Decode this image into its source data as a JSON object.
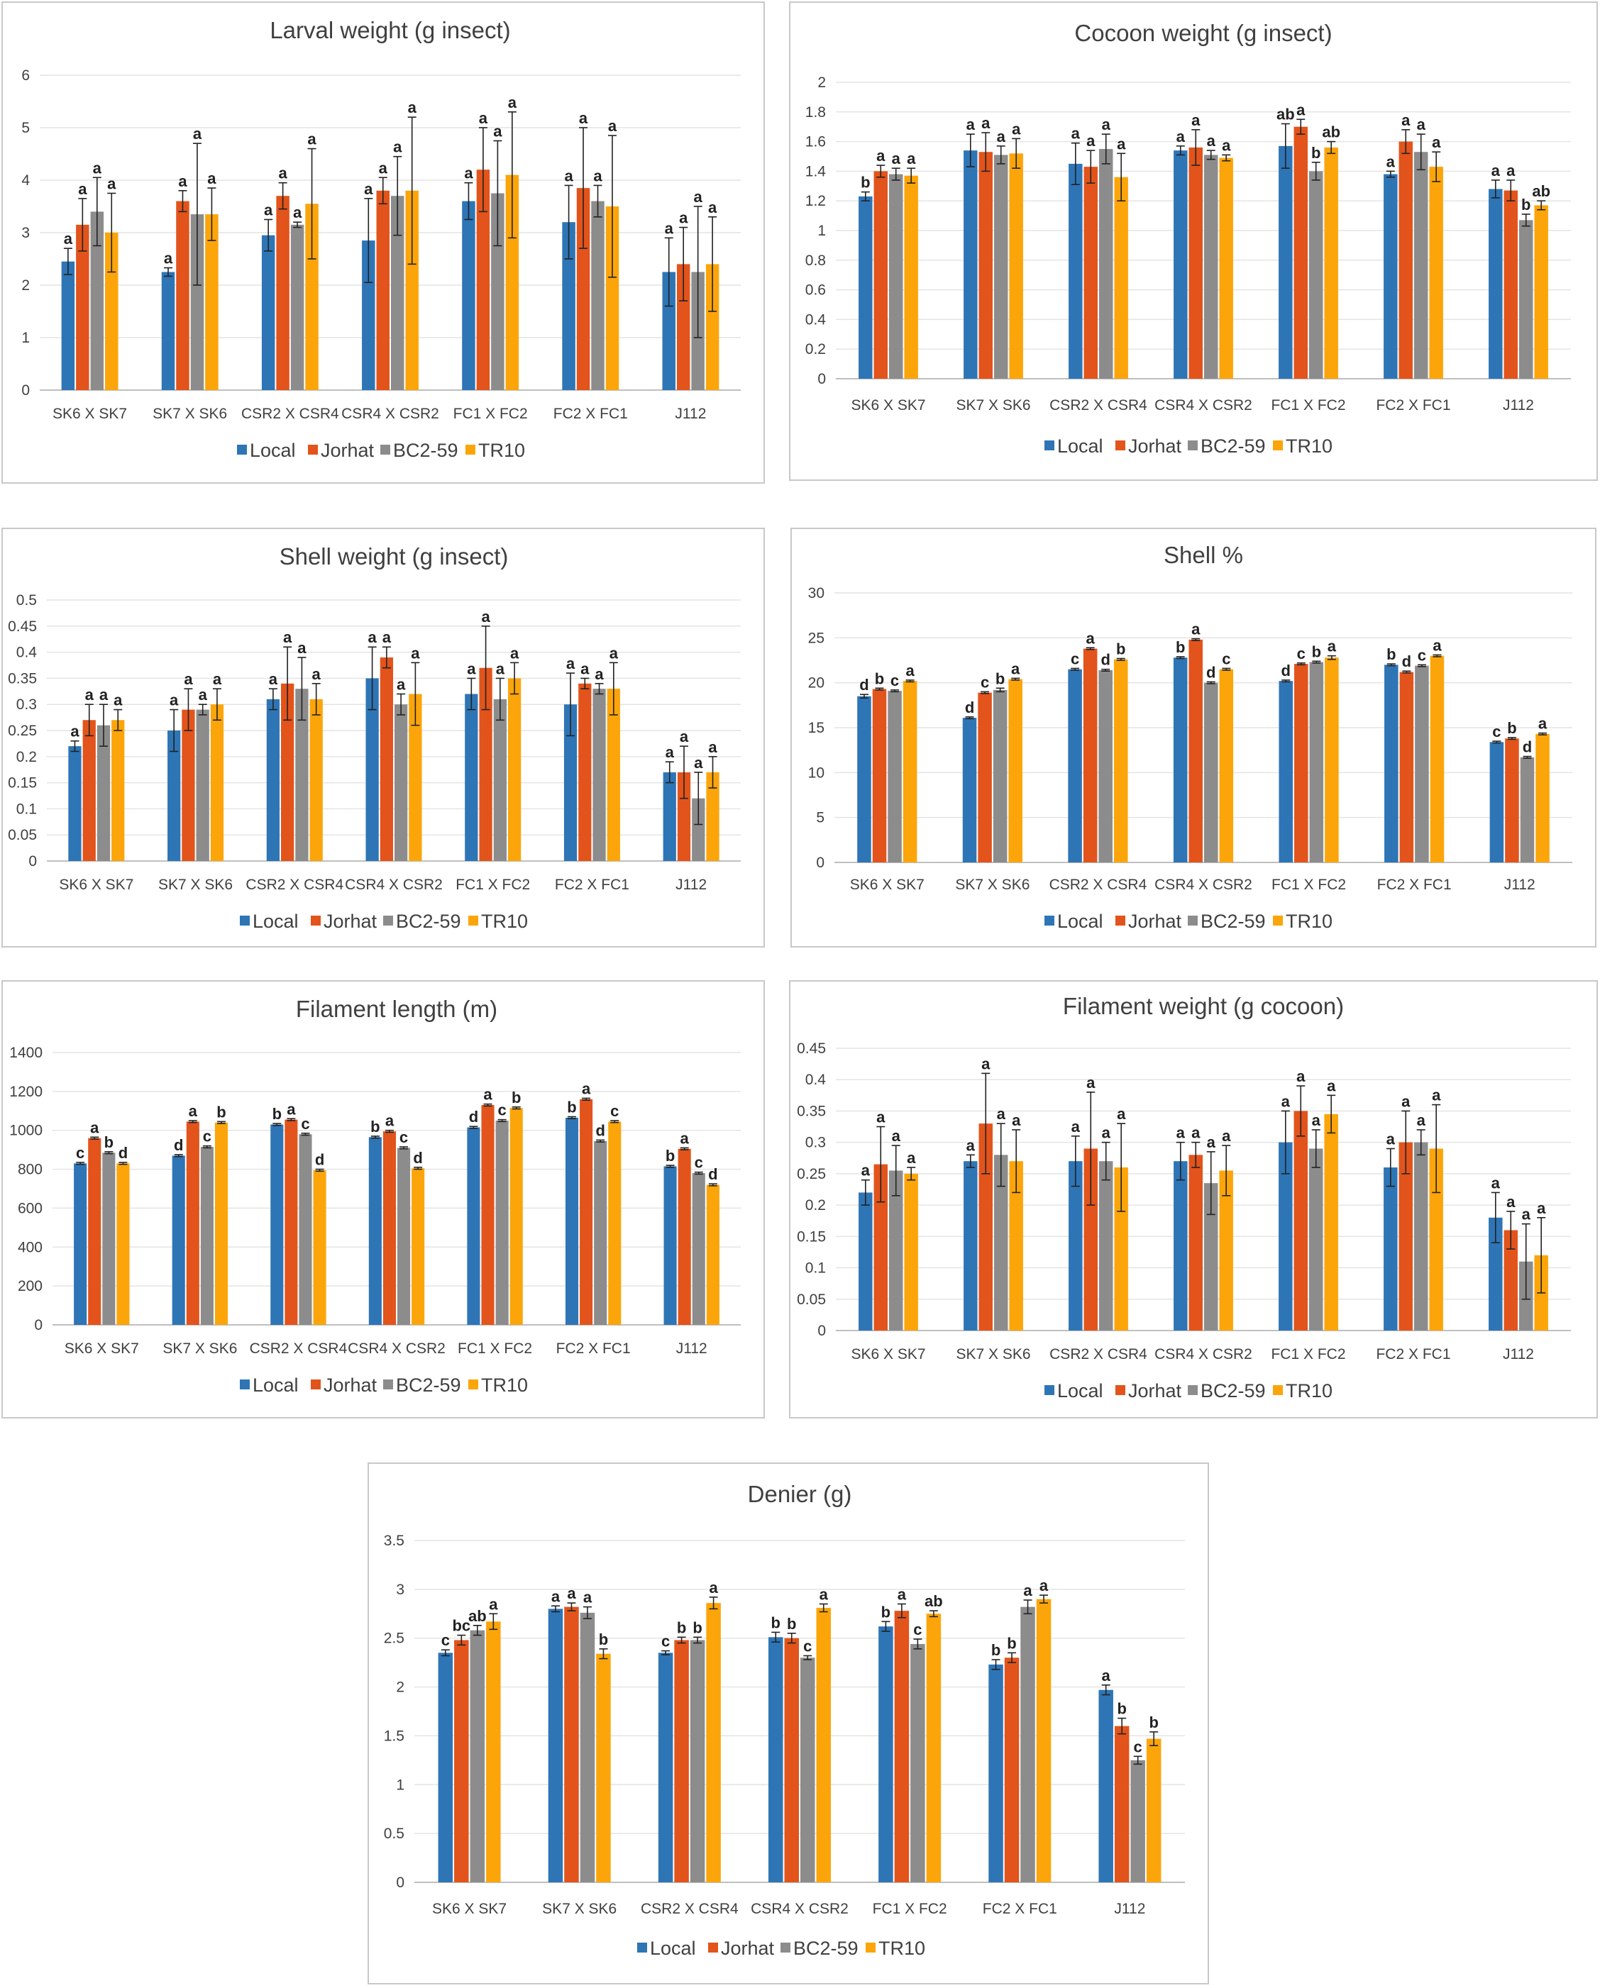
{
  "series_colors": {
    "Local": "#2e75b6",
    "Jorhat": "#e2541b",
    "BC2-59": "#8c8c8c",
    "TR10": "#fca50a"
  },
  "chart_data": [
    {
      "type": "bar",
      "title": "Larval weight (g insect)",
      "categories": [
        "SK6 X SK7",
        "SK7 X SK6",
        "CSR2 X CSR4",
        "CSR4 X CSR2",
        "FC1 X FC2",
        "FC2 X FC1",
        "J112"
      ],
      "ylim": [
        0,
        6
      ],
      "yticks": [
        "0",
        "1",
        "2",
        "3",
        "4",
        "5",
        "6"
      ],
      "ytick_values": [
        0,
        1,
        2,
        3,
        4,
        5,
        6
      ],
      "series": [
        {
          "name": "Local",
          "values": [
            2.45,
            2.25,
            2.95,
            2.85,
            3.6,
            3.2,
            2.25
          ],
          "errors": [
            0.25,
            0.08,
            0.3,
            0.8,
            0.35,
            0.7,
            0.65
          ],
          "labels": [
            "a",
            "a",
            "a",
            "a",
            "a",
            "a",
            "a"
          ]
        },
        {
          "name": "Jorhat",
          "values": [
            3.15,
            3.6,
            3.7,
            3.8,
            4.2,
            3.85,
            2.4
          ],
          "errors": [
            0.5,
            0.2,
            0.25,
            0.25,
            0.8,
            1.15,
            0.7
          ],
          "labels": [
            "a",
            "a",
            "a",
            "a",
            "a",
            "a",
            "a"
          ]
        },
        {
          "name": "BC2-59",
          "values": [
            3.4,
            3.35,
            3.15,
            3.7,
            3.75,
            3.6,
            2.25
          ],
          "errors": [
            0.65,
            1.35,
            0.05,
            0.75,
            1.0,
            0.3,
            1.25
          ],
          "labels": [
            "a",
            "a",
            "a",
            "a",
            "a",
            "a",
            "a"
          ]
        },
        {
          "name": "TR10",
          "values": [
            3.0,
            3.35,
            3.55,
            3.8,
            4.1,
            3.5,
            2.4
          ],
          "errors": [
            0.75,
            0.5,
            1.05,
            1.4,
            1.2,
            1.35,
            0.9
          ],
          "labels": [
            "a",
            "a",
            "a",
            "a",
            "a",
            "a",
            "a"
          ]
        }
      ]
    },
    {
      "type": "bar",
      "title": "Cocoon weight (g insect)",
      "categories": [
        "SK6 X SK7",
        "SK7 X SK6",
        "CSR2 X CSR4",
        "CSR4 X CSR2",
        "FC1 X FC2",
        "FC2 X FC1",
        "J112"
      ],
      "ylim": [
        0,
        2
      ],
      "yticks": [
        "0",
        "0.2",
        "0.4",
        "0.6",
        "0.8",
        "1",
        "1.2",
        "1.4",
        "1.6",
        "1.8",
        "2"
      ],
      "ytick_values": [
        0,
        0.2,
        0.4,
        0.6,
        0.8,
        1,
        1.2,
        1.4,
        1.6,
        1.8,
        2
      ],
      "series": [
        {
          "name": "Local",
          "values": [
            1.23,
            1.54,
            1.45,
            1.54,
            1.57,
            1.38,
            1.28
          ],
          "errors": [
            0.03,
            0.11,
            0.14,
            0.03,
            0.15,
            0.02,
            0.06
          ],
          "labels": [
            "b",
            "a",
            "a",
            "a",
            "ab",
            "a",
            "a"
          ]
        },
        {
          "name": "Jorhat",
          "values": [
            1.4,
            1.53,
            1.43,
            1.56,
            1.7,
            1.6,
            1.27
          ],
          "errors": [
            0.04,
            0.13,
            0.11,
            0.12,
            0.05,
            0.08,
            0.07
          ],
          "labels": [
            "a",
            "a",
            "a",
            "a",
            "a",
            "a",
            "a"
          ]
        },
        {
          "name": "BC2-59",
          "values": [
            1.38,
            1.51,
            1.55,
            1.51,
            1.4,
            1.53,
            1.07
          ],
          "errors": [
            0.04,
            0.06,
            0.1,
            0.03,
            0.06,
            0.12,
            0.04
          ],
          "labels": [
            "a",
            "a",
            "a",
            "a",
            "b",
            "a",
            "b"
          ]
        },
        {
          "name": "TR10",
          "values": [
            1.37,
            1.52,
            1.36,
            1.49,
            1.56,
            1.43,
            1.17
          ],
          "errors": [
            0.05,
            0.1,
            0.16,
            0.02,
            0.04,
            0.1,
            0.03
          ],
          "labels": [
            "a",
            "a",
            "a",
            "a",
            "ab",
            "a",
            "ab"
          ]
        }
      ]
    },
    {
      "type": "bar",
      "title": "Shell weight (g insect)",
      "categories": [
        "SK6 X SK7",
        "SK7 X SK6",
        "CSR2 X CSR4",
        "CSR4 X CSR2",
        "FC1 X FC2",
        "FC2 X FC1",
        "J112"
      ],
      "ylim": [
        0,
        0.5
      ],
      "yticks": [
        "0",
        "0.05",
        "0.1",
        "0.15",
        "0.2",
        "0.25",
        "0.3",
        "0.35",
        "0.4",
        "0.45",
        "0.5"
      ],
      "ytick_values": [
        0,
        0.05,
        0.1,
        0.15,
        0.2,
        0.25,
        0.3,
        0.35,
        0.4,
        0.45,
        0.5
      ],
      "series": [
        {
          "name": "Local",
          "values": [
            0.22,
            0.25,
            0.31,
            0.35,
            0.32,
            0.3,
            0.17
          ],
          "errors": [
            0.01,
            0.04,
            0.02,
            0.06,
            0.03,
            0.06,
            0.02
          ],
          "labels": [
            "a",
            "a",
            "a",
            "a",
            "a",
            "a",
            "a"
          ]
        },
        {
          "name": "Jorhat",
          "values": [
            0.27,
            0.29,
            0.34,
            0.39,
            0.37,
            0.34,
            0.17
          ],
          "errors": [
            0.03,
            0.04,
            0.07,
            0.02,
            0.08,
            0.01,
            0.05
          ],
          "labels": [
            "a",
            "a",
            "a",
            "a",
            "a",
            "a",
            "a"
          ]
        },
        {
          "name": "BC2-59",
          "values": [
            0.26,
            0.29,
            0.33,
            0.3,
            0.31,
            0.33,
            0.12
          ],
          "errors": [
            0.04,
            0.01,
            0.06,
            0.02,
            0.04,
            0.01,
            0.05
          ],
          "labels": [
            "a",
            "a",
            "a",
            "a",
            "a",
            "a",
            "a"
          ]
        },
        {
          "name": "TR10",
          "values": [
            0.27,
            0.3,
            0.31,
            0.32,
            0.35,
            0.33,
            0.17
          ],
          "errors": [
            0.02,
            0.03,
            0.03,
            0.06,
            0.03,
            0.05,
            0.03
          ],
          "labels": [
            "a",
            "a",
            "a",
            "a",
            "a",
            "a",
            "a"
          ]
        }
      ]
    },
    {
      "type": "bar",
      "title": "Shell %",
      "categories": [
        "SK6 X SK7",
        "SK7 X SK6",
        "CSR2 X CSR4",
        "CSR4 X CSR2",
        "FC1 X FC2",
        "FC2 X FC1",
        "J112"
      ],
      "ylim": [
        0,
        30
      ],
      "yticks": [
        "0",
        "5",
        "10",
        "15",
        "20",
        "25",
        "30"
      ],
      "ytick_values": [
        0,
        5,
        10,
        15,
        20,
        25,
        30
      ],
      "series": [
        {
          "name": "Local",
          "values": [
            18.5,
            16.1,
            21.5,
            22.8,
            20.2,
            22.0,
            13.4
          ],
          "errors": [
            0.2,
            0.1,
            0.1,
            0.1,
            0.1,
            0.1,
            0.1
          ],
          "labels": [
            "d",
            "d",
            "c",
            "b",
            "d",
            "b",
            "c"
          ]
        },
        {
          "name": "Jorhat",
          "values": [
            19.3,
            18.9,
            23.8,
            24.8,
            22.1,
            21.2,
            13.8
          ],
          "errors": [
            0.1,
            0.1,
            0.1,
            0.1,
            0.1,
            0.1,
            0.1
          ],
          "labels": [
            "b",
            "c",
            "a",
            "a",
            "c",
            "d",
            "b"
          ]
        },
        {
          "name": "BC2-59",
          "values": [
            19.1,
            19.2,
            21.4,
            20.0,
            22.3,
            21.9,
            11.7
          ],
          "errors": [
            0.1,
            0.2,
            0.1,
            0.1,
            0.1,
            0.1,
            0.1
          ],
          "labels": [
            "c",
            "b",
            "d",
            "d",
            "b",
            "c",
            "d"
          ]
        },
        {
          "name": "TR10",
          "values": [
            20.2,
            20.4,
            22.6,
            21.5,
            22.8,
            23.0,
            14.3
          ],
          "errors": [
            0.1,
            0.1,
            0.1,
            0.1,
            0.2,
            0.1,
            0.1
          ],
          "labels": [
            "a",
            "a",
            "b",
            "c",
            "a",
            "a",
            "a"
          ]
        }
      ]
    },
    {
      "type": "bar",
      "title": "Filament length (m)",
      "categories": [
        "SK6 X SK7",
        "SK7 X SK6",
        "CSR2 X CSR4",
        "CSR4 X CSR2",
        "FC1 X FC2",
        "FC2 X FC1",
        "J112"
      ],
      "ylim": [
        0,
        1400
      ],
      "yticks": [
        "0",
        "200",
        "400",
        "600",
        "800",
        "1000",
        "1200",
        "1400"
      ],
      "ytick_values": [
        0,
        200,
        400,
        600,
        800,
        1000,
        1200,
        1400
      ],
      "series": [
        {
          "name": "Local",
          "values": [
            830,
            870,
            1030,
            965,
            1015,
            1065,
            815
          ],
          "errors": [
            5,
            5,
            5,
            5,
            5,
            5,
            5
          ],
          "labels": [
            "c",
            "d",
            "b",
            "b",
            "d",
            "b",
            "b"
          ]
        },
        {
          "name": "Jorhat",
          "values": [
            960,
            1045,
            1055,
            995,
            1130,
            1160,
            905
          ],
          "errors": [
            5,
            5,
            5,
            5,
            5,
            5,
            5
          ],
          "labels": [
            "a",
            "a",
            "a",
            "a",
            "a",
            "a",
            "a"
          ]
        },
        {
          "name": "BC2-59",
          "values": [
            885,
            915,
            980,
            910,
            1050,
            945,
            780
          ],
          "errors": [
            5,
            5,
            5,
            5,
            5,
            5,
            5
          ],
          "labels": [
            "b",
            "c",
            "c",
            "c",
            "c",
            "d",
            "c"
          ]
        },
        {
          "name": "TR10",
          "values": [
            830,
            1040,
            795,
            805,
            1115,
            1045,
            720
          ],
          "errors": [
            5,
            5,
            5,
            5,
            5,
            5,
            5
          ],
          "labels": [
            "d",
            "b",
            "d",
            "d",
            "b",
            "c",
            "d"
          ]
        }
      ]
    },
    {
      "type": "bar",
      "title": "Filament weight (g cocoon)",
      "categories": [
        "SK6 X SK7",
        "SK7 X SK6",
        "CSR2 X CSR4",
        "CSR4 X CSR2",
        "FC1 X FC2",
        "FC2 X FC1",
        "J112"
      ],
      "ylim": [
        0,
        0.45
      ],
      "yticks": [
        "0",
        "0.05",
        "0.1",
        "0.15",
        "0.2",
        "0.25",
        "0.3",
        "0.35",
        "0.4",
        "0.45"
      ],
      "ytick_values": [
        0,
        0.05,
        0.1,
        0.15,
        0.2,
        0.25,
        0.3,
        0.35,
        0.4,
        0.45
      ],
      "series": [
        {
          "name": "Local",
          "values": [
            0.22,
            0.27,
            0.27,
            0.27,
            0.3,
            0.26,
            0.18
          ],
          "errors": [
            0.02,
            0.01,
            0.04,
            0.03,
            0.05,
            0.03,
            0.04
          ],
          "labels": [
            "a",
            "a",
            "a",
            "a",
            "a",
            "a",
            "a"
          ]
        },
        {
          "name": "Jorhat",
          "values": [
            0.265,
            0.33,
            0.29,
            0.28,
            0.35,
            0.3,
            0.16
          ],
          "errors": [
            0.06,
            0.08,
            0.09,
            0.02,
            0.04,
            0.05,
            0.03
          ],
          "labels": [
            "a",
            "a",
            "a",
            "a",
            "a",
            "a",
            "a"
          ]
        },
        {
          "name": "BC2-59",
          "values": [
            0.255,
            0.28,
            0.27,
            0.235,
            0.29,
            0.3,
            0.11
          ],
          "errors": [
            0.04,
            0.05,
            0.03,
            0.05,
            0.03,
            0.02,
            0.06
          ],
          "labels": [
            "a",
            "a",
            "a",
            "a",
            "a",
            "a",
            "a"
          ]
        },
        {
          "name": "TR10",
          "values": [
            0.25,
            0.27,
            0.26,
            0.255,
            0.345,
            0.29,
            0.12
          ],
          "errors": [
            0.01,
            0.05,
            0.07,
            0.04,
            0.03,
            0.07,
            0.06
          ],
          "labels": [
            "a",
            "a",
            "a",
            "a",
            "a",
            "a",
            "a"
          ]
        }
      ]
    },
    {
      "type": "bar",
      "title": "Denier (g)",
      "categories": [
        "SK6 X SK7",
        "SK7 X SK6",
        "CSR2 X CSR4",
        "CSR4 X CSR2",
        "FC1 X FC2",
        "FC2 X FC1",
        "J112"
      ],
      "ylim": [
        0,
        3.5
      ],
      "yticks": [
        "0",
        "0.5",
        "1",
        "1.5",
        "2",
        "2.5",
        "3",
        "3.5"
      ],
      "ytick_values": [
        0,
        0.5,
        1,
        1.5,
        2,
        2.5,
        3,
        3.5
      ],
      "series": [
        {
          "name": "Local",
          "values": [
            2.35,
            2.8,
            2.35,
            2.51,
            2.62,
            2.23,
            1.97
          ],
          "errors": [
            0.03,
            0.03,
            0.02,
            0.05,
            0.05,
            0.05,
            0.05
          ],
          "labels": [
            "c",
            "a",
            "c",
            "b",
            "b",
            "b",
            "a"
          ]
        },
        {
          "name": "Jorhat",
          "values": [
            2.48,
            2.82,
            2.48,
            2.5,
            2.78,
            2.3,
            1.6
          ],
          "errors": [
            0.05,
            0.04,
            0.03,
            0.05,
            0.07,
            0.05,
            0.08
          ],
          "labels": [
            "bc",
            "a",
            "b",
            "b",
            "a",
            "b",
            "b"
          ]
        },
        {
          "name": "BC2-59",
          "values": [
            2.58,
            2.76,
            2.48,
            2.3,
            2.44,
            2.82,
            1.25
          ],
          "errors": [
            0.05,
            0.06,
            0.03,
            0.02,
            0.05,
            0.07,
            0.04
          ],
          "labels": [
            "ab",
            "a",
            "b",
            "c",
            "c",
            "a",
            "c"
          ]
        },
        {
          "name": "TR10",
          "values": [
            2.67,
            2.34,
            2.86,
            2.81,
            2.75,
            2.9,
            1.47
          ],
          "errors": [
            0.08,
            0.05,
            0.06,
            0.04,
            0.03,
            0.04,
            0.07
          ],
          "labels": [
            "a",
            "b",
            "a",
            "a",
            "ab",
            "a",
            "b"
          ]
        }
      ]
    }
  ]
}
